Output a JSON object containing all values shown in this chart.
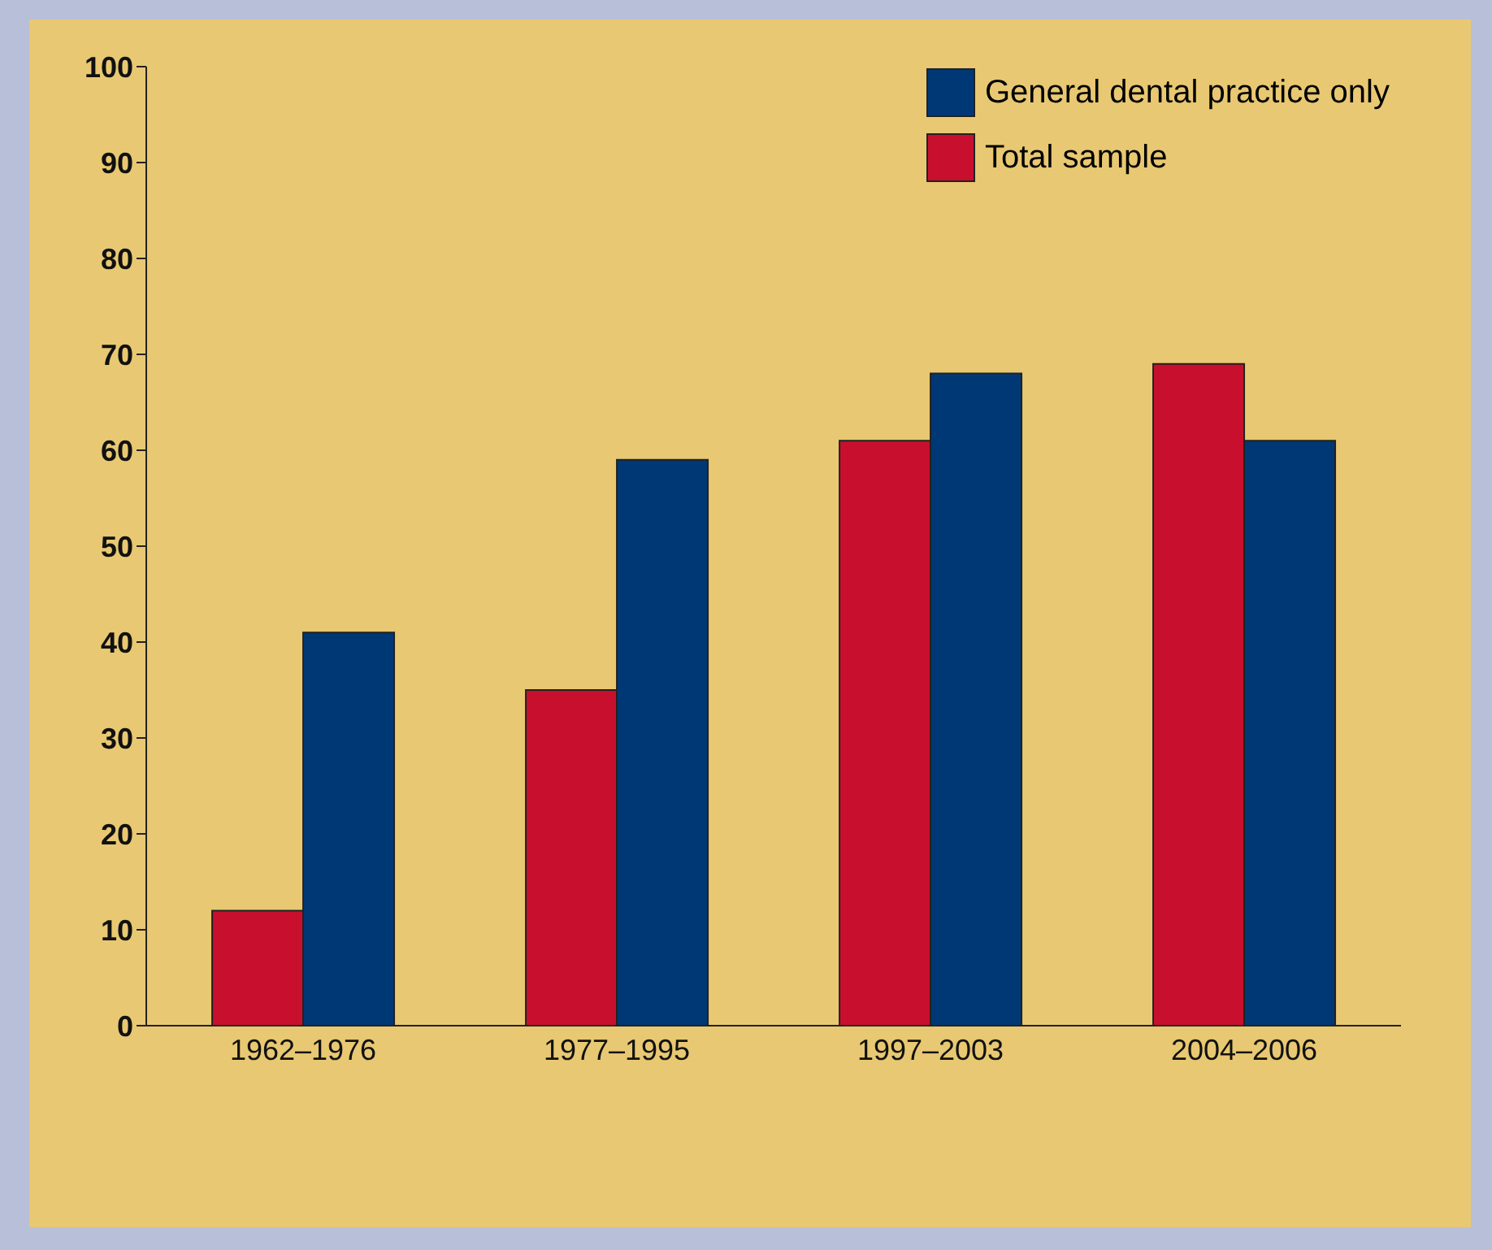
{
  "chart_data": {
    "type": "bar",
    "categories": [
      "1962–1976",
      "1977–1995",
      "1997–2003",
      "2004–2006"
    ],
    "series": [
      {
        "name": "Total sample",
        "color": "#c8102e",
        "values": [
          12,
          35,
          61,
          69
        ]
      },
      {
        "name": "General dental practice only",
        "color": "#003876",
        "values": [
          41,
          59,
          68,
          61
        ]
      }
    ],
    "ylim": [
      0,
      100
    ],
    "yticks": [
      0,
      10,
      20,
      30,
      40,
      50,
      60,
      70,
      80,
      90,
      100
    ],
    "grid": false,
    "legend": "top right"
  }
}
